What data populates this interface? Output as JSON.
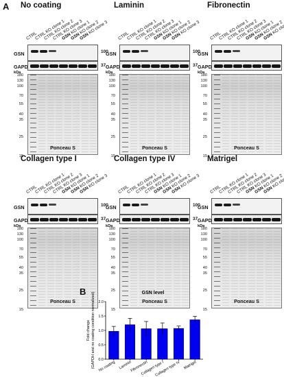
{
  "figure": {
    "panel_a": "A",
    "panel_b": "B",
    "lanes": [
      {
        "prefix": "CTRL",
        "rest": ""
      },
      {
        "prefix": "CTRL",
        "rest": " KO clone 1"
      },
      {
        "prefix": "CTRL",
        "rest": " KO clone 2"
      },
      {
        "prefix": "CTRL",
        "rest": " KO clone 3"
      },
      {
        "prefix": "GSN",
        "rest": " KO clone 1"
      },
      {
        "prefix": "GSN",
        "rest": " KO clone 2"
      },
      {
        "prefix": "GSN",
        "rest": " KO clone 3"
      }
    ],
    "row_labels": {
      "gsn": "GSN",
      "gapdh": "GAPDH"
    },
    "mw_right": {
      "gsn": "100",
      "gapdh": "37"
    },
    "kda": "kDa",
    "mw_ladder": [
      "180",
      "130",
      "100",
      "70",
      "55",
      "40",
      "35",
      "25",
      "15"
    ],
    "stain_label": "Ponceau S",
    "conditions": [
      {
        "title": "No coating"
      },
      {
        "title": "Laminin"
      },
      {
        "title": "Fibronectin"
      },
      {
        "title": "Collagen type I"
      },
      {
        "title": "Collagen type IV"
      },
      {
        "title": "Matrigel"
      }
    ]
  },
  "chart_data": {
    "type": "bar",
    "title": "GSN level",
    "ylabel": "Fold change\n(GAPDH and no coating condition normalized)",
    "categories": [
      "No coating",
      "Laminin",
      "Fibronectin",
      "Collagen type I",
      "Collagen type IV",
      "Matrigel"
    ],
    "values": [
      0.97,
      1.2,
      1.06,
      1.06,
      1.07,
      1.37
    ],
    "errors": [
      0.17,
      0.22,
      0.25,
      0.2,
      0.08,
      0.12
    ],
    "ylim": [
      0.0,
      2.0
    ],
    "yticks": [
      "0.0",
      "0.5",
      "1.0",
      "1.5",
      "2.0"
    ],
    "bar_color": "#0000ee"
  }
}
